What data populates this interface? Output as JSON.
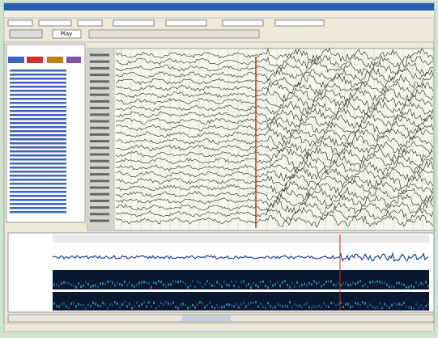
{
  "toolbar": {
    "play": "Play"
  }
}
